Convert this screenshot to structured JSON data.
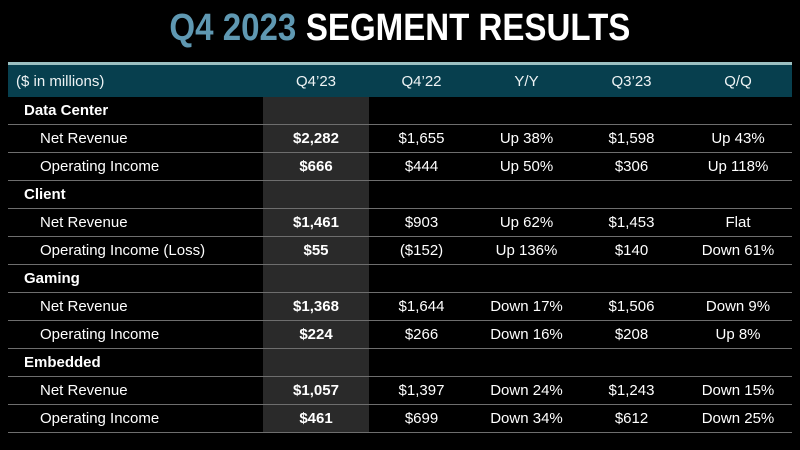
{
  "title": {
    "accent": "Q4 2023",
    "main": "SEGMENT RESULTS"
  },
  "colors": {
    "background": "#000000",
    "title_accent": "#5f98b2",
    "header_bar": "#073f4e",
    "header_bar_top_border": "#9cc0c1",
    "highlight_column": "#2a2a2a",
    "row_divider": "#6e6e6e",
    "text": "#ffffff"
  },
  "table": {
    "header": {
      "label": "($ in millions)",
      "columns": [
        "Q4’23",
        "Q4’22",
        "Y/Y",
        "Q3’23",
        "Q/Q"
      ]
    },
    "highlighted_column": "Q4’23",
    "sections": [
      {
        "name": "Data Center",
        "rows": [
          {
            "label": "Net Revenue",
            "values": [
              "$2,282",
              "$1,655",
              "Up 38%",
              "$1,598",
              "Up 43%"
            ]
          },
          {
            "label": "Operating Income",
            "values": [
              "$666",
              "$444",
              "Up 50%",
              "$306",
              "Up 118%"
            ]
          }
        ]
      },
      {
        "name": "Client",
        "rows": [
          {
            "label": "Net Revenue",
            "values": [
              "$1,461",
              "$903",
              "Up 62%",
              "$1,453",
              "Flat"
            ]
          },
          {
            "label": "Operating Income (Loss)",
            "values": [
              "$55",
              "($152)",
              "Up 136%",
              "$140",
              "Down 61%"
            ]
          }
        ]
      },
      {
        "name": "Gaming",
        "rows": [
          {
            "label": "Net Revenue",
            "values": [
              "$1,368",
              "$1,644",
              "Down 17%",
              "$1,506",
              "Down 9%"
            ]
          },
          {
            "label": "Operating Income",
            "values": [
              "$224",
              "$266",
              "Down 16%",
              "$208",
              "Up 8%"
            ]
          }
        ]
      },
      {
        "name": "Embedded",
        "rows": [
          {
            "label": "Net Revenue",
            "values": [
              "$1,057",
              "$1,397",
              "Down 24%",
              "$1,243",
              "Down 15%"
            ]
          },
          {
            "label": "Operating Income",
            "values": [
              "$461",
              "$699",
              "Down 34%",
              "$612",
              "Down 25%"
            ]
          }
        ]
      }
    ]
  }
}
